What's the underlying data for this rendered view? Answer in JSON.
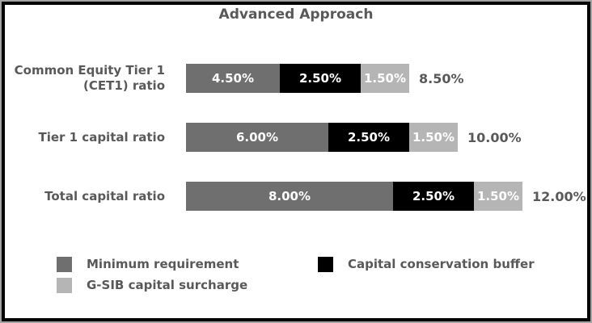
{
  "title": "Advanced Approach",
  "colors": {
    "minimum_requirement": "#6f6f6f",
    "capital_conservation_buffer": "#000000",
    "gsib_capital_surcharge": "#b5b5b5",
    "text": "#595959",
    "background": "#ffffff",
    "frame_inner": "#000000",
    "frame_outer": "#a3a3a3"
  },
  "chart_data": {
    "type": "bar",
    "orientation": "horizontal",
    "stacked": true,
    "title": "Advanced Approach",
    "grid": false,
    "legend_position": "bottom",
    "xlim": [
      0,
      12
    ],
    "categories": [
      "Common Equity Tier 1 (CET1) ratio",
      "Tier 1 capital ratio",
      "Total capital ratio"
    ],
    "category_label_lines": [
      [
        "Common Equity Tier 1",
        "(CET1) ratio"
      ],
      [
        "Tier 1 capital ratio"
      ],
      [
        "Total capital ratio"
      ]
    ],
    "series": [
      {
        "name": "Minimum requirement",
        "color": "#6f6f6f",
        "values": [
          4.5,
          6.0,
          8.0
        ],
        "labels": [
          "4.50%",
          "6.00%",
          "8.00%"
        ]
      },
      {
        "name": "Capital conservation buffer",
        "color": "#000000",
        "values": [
          2.5,
          2.5,
          2.5
        ],
        "labels": [
          "2.50%",
          "2.50%",
          "2.50%"
        ]
      },
      {
        "name": "G-SIB capital surcharge",
        "color": "#b5b5b5",
        "values": [
          1.5,
          1.5,
          1.5
        ],
        "labels": [
          "1.50%",
          "1.50%",
          "1.50%"
        ]
      }
    ],
    "totals": [
      8.5,
      10.0,
      12.0
    ],
    "total_labels": [
      "8.50%",
      "10.00%",
      "12.00%"
    ]
  },
  "legend": {
    "items": [
      {
        "label": "Minimum requirement",
        "color": "#6f6f6f"
      },
      {
        "label": "G-SIB capital surcharge",
        "color": "#b5b5b5"
      },
      {
        "label": "Capital conservation buffer",
        "color": "#000000"
      }
    ]
  }
}
